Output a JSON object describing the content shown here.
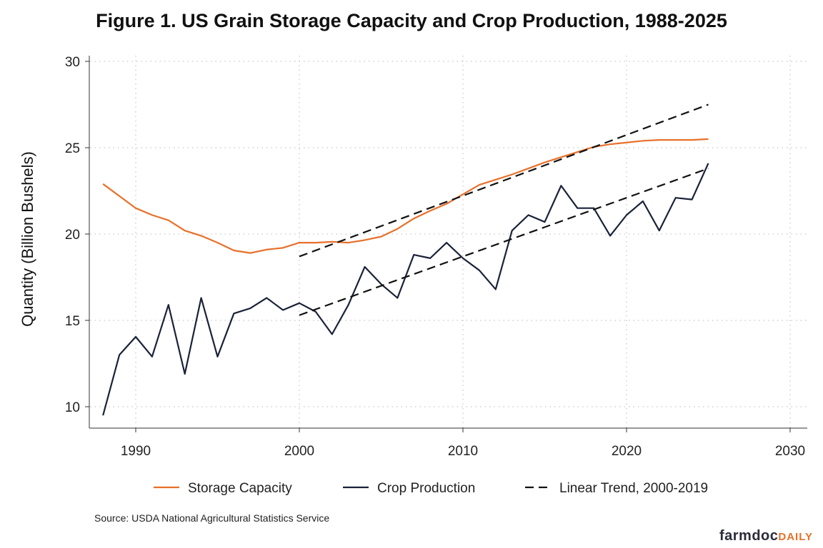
{
  "chart_data": {
    "type": "line",
    "title": "Figure 1. US Grain Storage Capacity and Crop Production, 1988-2025",
    "ylabel": "Quantity (Billion Bushels)",
    "xlabel": "",
    "xlim": [
      1987.5,
      2030
    ],
    "ylim": [
      9.5,
      30
    ],
    "xticks": [
      1990,
      2000,
      2010,
      2020,
      2030
    ],
    "yticks": [
      10,
      15,
      20,
      25,
      30
    ],
    "grid": true,
    "legend_position": "bottom",
    "x": [
      1988,
      1989,
      1990,
      1991,
      1992,
      1993,
      1994,
      1995,
      1996,
      1997,
      1998,
      1999,
      2000,
      2001,
      2002,
      2003,
      2004,
      2005,
      2006,
      2007,
      2008,
      2009,
      2010,
      2011,
      2012,
      2013,
      2014,
      2015,
      2016,
      2017,
      2018,
      2019,
      2020,
      2021,
      2022,
      2023,
      2024,
      2025
    ],
    "series": [
      {
        "name": "Storage Capacity",
        "color": "#e8702a",
        "style": "solid",
        "values": [
          22.9,
          22.2,
          21.5,
          21.1,
          20.8,
          20.2,
          19.9,
          19.5,
          19.05,
          18.9,
          19.1,
          19.2,
          19.5,
          19.5,
          19.55,
          19.5,
          19.65,
          19.85,
          20.3,
          20.9,
          21.35,
          21.75,
          22.3,
          22.85,
          23.15,
          23.45,
          23.8,
          24.15,
          24.45,
          24.75,
          25.05,
          25.2,
          25.3,
          25.4,
          25.45,
          25.45,
          25.45,
          25.5
        ]
      },
      {
        "name": "Crop Production",
        "color": "#1a2238",
        "style": "solid",
        "values": [
          9.5,
          13.0,
          14.05,
          12.9,
          15.9,
          11.9,
          16.3,
          12.9,
          15.4,
          15.7,
          16.3,
          15.6,
          16.0,
          15.5,
          14.2,
          15.9,
          18.1,
          17.1,
          16.3,
          18.8,
          18.6,
          19.5,
          18.6,
          17.9,
          16.8,
          20.2,
          21.1,
          20.7,
          22.8,
          21.5,
          21.5,
          19.9,
          21.1,
          21.9,
          20.2,
          22.1,
          22.0,
          24.1
        ]
      },
      {
        "name": "Linear Trend, 2000-2019",
        "color": "#111111",
        "style": "dashed",
        "segments": [
          {
            "x": [
              2000,
              2025
            ],
            "y": [
              18.7,
              27.5
            ]
          },
          {
            "x": [
              2000,
              2025
            ],
            "y": [
              15.3,
              23.8
            ]
          }
        ]
      }
    ],
    "source": "Source: USDA National Agricultural Statistics Service"
  },
  "branding": {
    "logo_main": "farmdoc",
    "logo_accent": "DAILY"
  }
}
